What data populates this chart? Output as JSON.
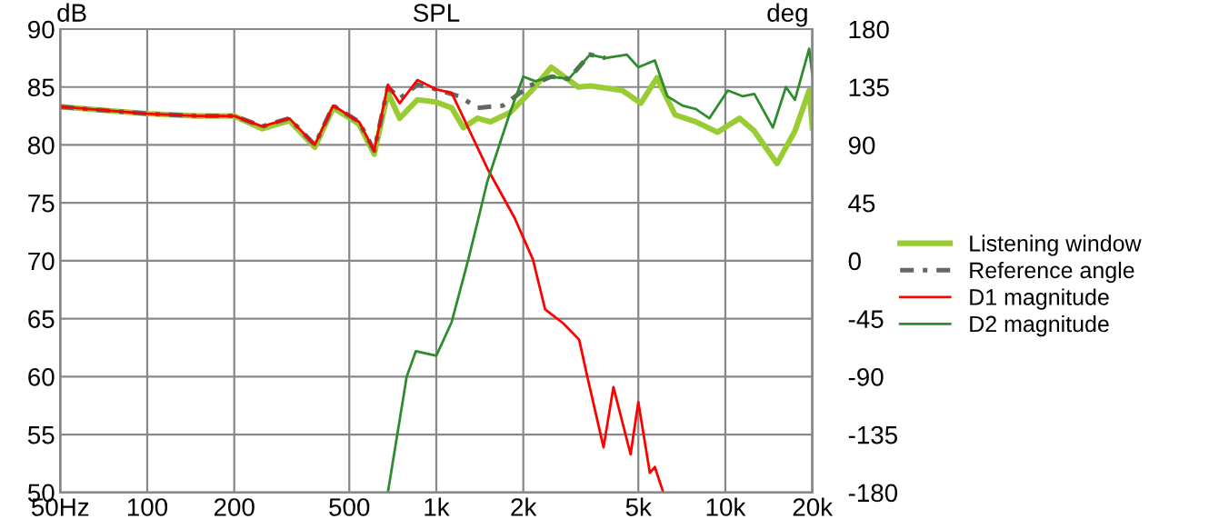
{
  "chart_data": {
    "type": "line",
    "title": "SPL",
    "ylabel": "dB",
    "y2label": "deg",
    "log": "x",
    "xlim": [
      50,
      20000
    ],
    "xticks": [
      {
        "value": 50,
        "label": "50Hz"
      },
      100,
      200,
      500,
      {
        "value": 1000,
        "label": "1k"
      },
      {
        "value": 2000,
        "label": "2k"
      },
      {
        "value": 5000,
        "label": "5k"
      },
      {
        "value": 10000,
        "label": "10k"
      },
      {
        "value": 20000,
        "label": "20k"
      }
    ],
    "ylim": [
      50,
      90
    ],
    "yticks": [
      50,
      55,
      60,
      65,
      70,
      75,
      80,
      85,
      90
    ],
    "y2lim": [
      -180,
      180
    ],
    "y2ticks": [
      -180,
      -135,
      -90,
      -45,
      0,
      45,
      90,
      135,
      180
    ],
    "grid": true,
    "legend": "right",
    "series": [
      {
        "name": "Listening window",
        "color": "#99cc33",
        "line_style": "solid",
        "x": [
          50,
          70,
          100,
          150,
          200,
          250,
          310,
          380,
          440,
          540,
          610,
          680,
          747,
          860,
          1000,
          1130,
          1240,
          1390,
          1540,
          1800,
          2140,
          2500,
          3100,
          3420,
          4400,
          5100,
          5800,
          6700,
          7900,
          9400,
          11200,
          12600,
          13600,
          15100,
          17400,
          19500,
          20000
        ],
        "values": [
          83.3,
          83.0,
          82.7,
          82.5,
          82.5,
          81.4,
          82.1,
          79.8,
          83.2,
          81.8,
          79.2,
          84.5,
          82.3,
          83.9,
          83.7,
          83.2,
          81.5,
          82.3,
          82.0,
          82.8,
          84.7,
          86.7,
          85.0,
          85.1,
          84.7,
          83.6,
          85.8,
          82.6,
          82.0,
          81.1,
          82.3,
          81.2,
          80.0,
          78.4,
          81.2,
          84.7,
          81.5
        ]
      },
      {
        "name": "Reference angle",
        "color": "#666666",
        "line_style": "dashed",
        "x": [
          50,
          70,
          100,
          150,
          200,
          250,
          310,
          380,
          440,
          540,
          610,
          680,
          747,
          860,
          1000,
          1200,
          1390,
          1700,
          2100,
          2500,
          2870,
          3400,
          3850
        ],
        "values": [
          83.3,
          83.0,
          82.7,
          82.5,
          82.5,
          81.6,
          82.3,
          80.0,
          83.4,
          82.0,
          79.5,
          85.0,
          84.0,
          85.2,
          84.8,
          84.2,
          83.2,
          83.4,
          85.1,
          85.9,
          85.7,
          87.8,
          87.5
        ]
      },
      {
        "name": "D1 magnitude",
        "color": "#ff0000",
        "line_style": "solid",
        "x": [
          50,
          70,
          100,
          150,
          200,
          250,
          310,
          380,
          440,
          540,
          610,
          680,
          747,
          860,
          1000,
          1130,
          1310,
          1500,
          1866,
          2160,
          2380,
          2750,
          3120,
          3330,
          3790,
          4100,
          4700,
          5000,
          5480,
          5700,
          6100
        ],
        "values": [
          83.3,
          83.0,
          82.7,
          82.5,
          82.5,
          81.6,
          82.3,
          80.0,
          83.4,
          82.0,
          79.5,
          85.2,
          83.6,
          85.6,
          84.8,
          84.5,
          81.1,
          78.0,
          73.7,
          70.1,
          65.8,
          64.6,
          63.2,
          60.0,
          53.9,
          59.1,
          53.3,
          57.8,
          51.7,
          52.2,
          50.0
        ]
      },
      {
        "name": "D2 magnitude",
        "color": "#2e8b2e",
        "line_style": "solid",
        "x": [
          680,
          790,
          850,
          1000,
          1130,
          1290,
          1400,
          1500,
          1800,
          2000,
          2200,
          2500,
          2870,
          3400,
          3850,
          4560,
          5000,
          5700,
          6300,
          7100,
          7900,
          8800,
          10200,
          11500,
          12600,
          14600,
          16200,
          17400,
          19500,
          20000
        ],
        "values": [
          50.0,
          60.0,
          62.2,
          61.8,
          64.7,
          70.1,
          73.7,
          76.8,
          82.8,
          85.9,
          85.5,
          85.9,
          85.7,
          87.8,
          87.5,
          87.8,
          86.7,
          87.3,
          84.2,
          83.4,
          83.1,
          82.3,
          84.7,
          84.2,
          84.4,
          81.5,
          85.0,
          83.9,
          88.3,
          86.0
        ]
      }
    ]
  }
}
